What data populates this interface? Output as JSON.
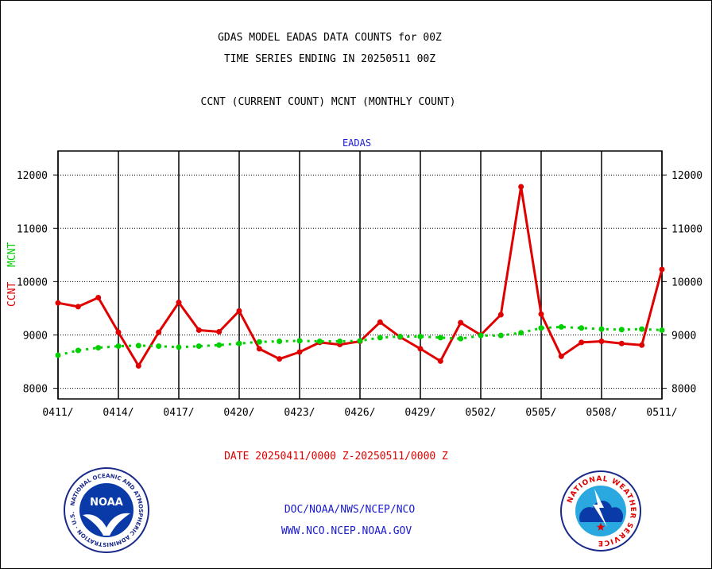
{
  "header": {
    "line1": "GDAS MODEL EADAS DATA COUNTS for 00Z",
    "line2": "TIME SERIES ENDING IN 20250511 00Z",
    "line3": "CCNT (CURRENT COUNT) MCNT (MONTHLY COUNT)"
  },
  "footer": {
    "date_range": "DATE 20250411/0000 Z-20250511/0000 Z",
    "org": "DOC/NOAA/NWS/NCEP/NCO",
    "url": "WWW.NCO.NCEP.NOAA.GOV"
  },
  "logos": {
    "left": {
      "icon": "noaa-logo",
      "text": "NOAA",
      "ring": "NATIONAL OCEANIC AND ATMOSPHERIC ADMINISTRATION · U.S. DEPARTMENT OF COMMERCE"
    },
    "right": {
      "icon": "nws-logo",
      "ring": "NATIONAL WEATHER SERVICE"
    }
  },
  "chart_data": {
    "type": "line",
    "title": "EADAS",
    "ylabel_series": [
      "CCNT",
      "MCNT"
    ],
    "ylim": [
      7800,
      12450
    ],
    "yticks": [
      8000,
      9000,
      10000,
      11000,
      12000
    ],
    "x_tick_labels": [
      "0411/",
      "0414/",
      "0417/",
      "0420/",
      "0423/",
      "0426/",
      "0429/",
      "0502/",
      "0505/",
      "0508/",
      "0511/"
    ],
    "x_days": 30,
    "grid": true,
    "colors": {
      "CCNT": "#e00000",
      "MCNT": "#00d000"
    },
    "series": [
      {
        "name": "CCNT",
        "values": [
          9600,
          9530,
          9700,
          9050,
          8420,
          9050,
          9610,
          9090,
          9060,
          9450,
          8740,
          8550,
          8680,
          8860,
          8820,
          8880,
          9240,
          8960,
          8740,
          8510,
          9230,
          9000,
          9380,
          11780,
          9390,
          8600,
          8860,
          8880,
          8840,
          8810,
          10230
        ]
      },
      {
        "name": "MCNT",
        "values": [
          8620,
          8710,
          8760,
          8790,
          8800,
          8790,
          8770,
          8790,
          8810,
          8840,
          8870,
          8880,
          8890,
          8880,
          8880,
          8890,
          8950,
          8970,
          8970,
          8950,
          8930,
          8990,
          8990,
          9040,
          9130,
          9150,
          9130,
          9110,
          9100,
          9110,
          9090
        ]
      }
    ]
  }
}
